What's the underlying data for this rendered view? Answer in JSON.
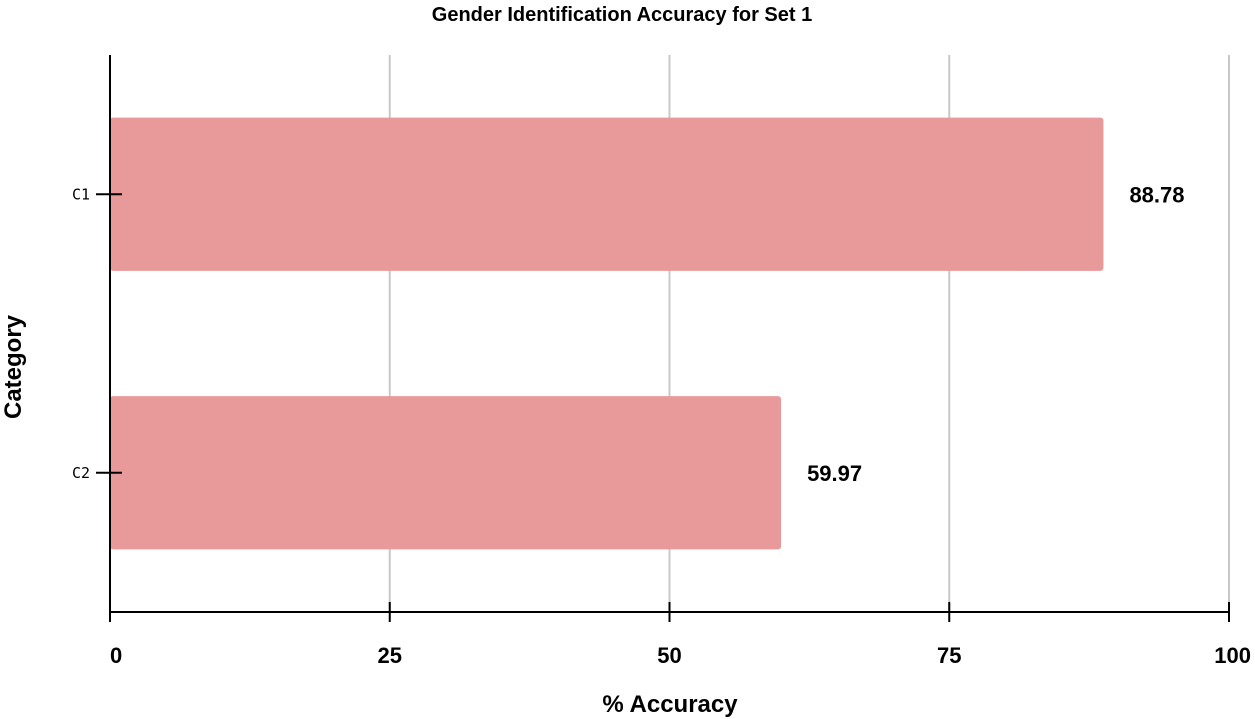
{
  "chart_data": {
    "type": "bar",
    "orientation": "horizontal",
    "title": "Gender Identification Accuracy for Set 1",
    "xlabel": "% Accuracy",
    "ylabel": "Category",
    "categories": [
      "C1",
      "C2"
    ],
    "values": [
      88.78,
      59.97
    ],
    "data_labels": [
      "88.78",
      "59.97"
    ],
    "xlim": [
      0,
      100
    ],
    "xticks": [
      0,
      25,
      50,
      75,
      100
    ],
    "xtick_labels": [
      "0",
      "25",
      "50",
      "75",
      "100"
    ],
    "grid": "vertical",
    "bar_color": "#e8999a"
  }
}
